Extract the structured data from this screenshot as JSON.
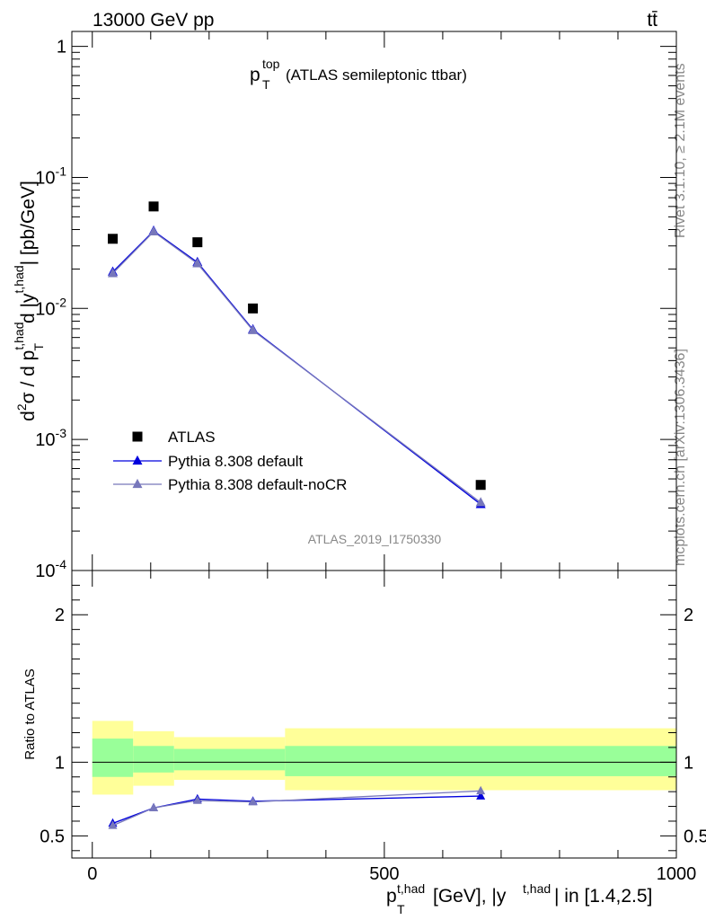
{
  "header": {
    "energy_label": "13000 GeV pp",
    "process_label": "tt̄"
  },
  "side_labels": {
    "rivet": "Rivet 3.1.10, ≥ 2.1M events",
    "mcplots": "mcplots.cern.ch [arXiv:1306.3436]"
  },
  "chart_data": [
    {
      "type": "scatter",
      "title": "p_T^top (ATLAS semileptonic ttbar)",
      "title_main": "p",
      "title_sup": "top",
      "title_sub": "T",
      "title_rest": " (ATLAS semileptonic ttbar)",
      "analysis_tag": "ATLAS_2019_I1750330",
      "ylabel": "d²σ / d p_T^{t,had} d |y^{t,had}| [pb/GeV]",
      "yscale": "log",
      "ylim": [
        0.0001,
        1.3
      ],
      "xlim": [
        -35,
        1000
      ],
      "y_tick_labels": [
        "10^-4",
        "10^-3",
        "10^-2",
        "10^-1",
        "1"
      ],
      "legend_position": "left-lower",
      "series": [
        {
          "name": "ATLAS",
          "color": "#000000",
          "marker": "square",
          "x": [
            35,
            105,
            180,
            275,
            665
          ],
          "y": [
            0.034,
            0.06,
            0.032,
            0.01,
            0.00045
          ]
        },
        {
          "name": "Pythia 8.308 default",
          "color": "#0000dd",
          "marker": "triangle",
          "x": [
            35,
            105,
            180,
            275,
            665
          ],
          "y": [
            0.019,
            0.039,
            0.0225,
            0.0069,
            0.00032
          ]
        },
        {
          "name": "Pythia 8.308 default-noCR",
          "color": "#7777bb",
          "marker": "triangle",
          "x": [
            35,
            105,
            180,
            275,
            665
          ],
          "y": [
            0.0185,
            0.0385,
            0.022,
            0.0068,
            0.00033
          ]
        }
      ]
    },
    {
      "type": "line",
      "title": "",
      "ylabel": "Ratio to ATLAS",
      "xlabel": "p_T^{t,had} [GeV], |y^{t,had}| in [1.4,2.5]",
      "xlabel_parts": {
        "p": "p",
        "sub": "T",
        "sup": "t,had",
        "mid": " [GeV], |y",
        "sup2": "t,had",
        "rest": "| in [1.4,2.5]"
      },
      "xlim": [
        -35,
        1000
      ],
      "ylim": [
        0.35,
        2.3
      ],
      "x_tick_labels": [
        "0",
        "500",
        "1000"
      ],
      "y_tick_labels": [
        "0.5",
        "1",
        "2"
      ],
      "bands": [
        {
          "x_range": [
            0,
            70
          ],
          "inner": [
            0.9,
            1.16
          ],
          "outer": [
            0.78,
            1.28
          ]
        },
        {
          "x_range": [
            70,
            140
          ],
          "inner": [
            0.93,
            1.11
          ],
          "outer": [
            0.84,
            1.21
          ]
        },
        {
          "x_range": [
            140,
            330
          ],
          "inner": [
            0.945,
            1.09
          ],
          "outer": [
            0.88,
            1.17
          ]
        },
        {
          "x_range": [
            330,
            1000
          ],
          "inner": [
            0.905,
            1.11
          ],
          "outer": [
            0.81,
            1.23
          ]
        }
      ],
      "band_colors": {
        "inner": "#99ff99",
        "outer": "#ffff99"
      },
      "series": [
        {
          "name": "Pythia 8.308 default",
          "color": "#0000dd",
          "x": [
            35,
            105,
            180,
            275,
            665
          ],
          "y": [
            0.585,
            0.69,
            0.75,
            0.735,
            0.77
          ]
        },
        {
          "name": "Pythia 8.308 default-noCR",
          "color": "#7777bb",
          "x": [
            35,
            105,
            180,
            275,
            665
          ],
          "y": [
            0.57,
            0.69,
            0.74,
            0.73,
            0.805
          ]
        }
      ]
    }
  ]
}
